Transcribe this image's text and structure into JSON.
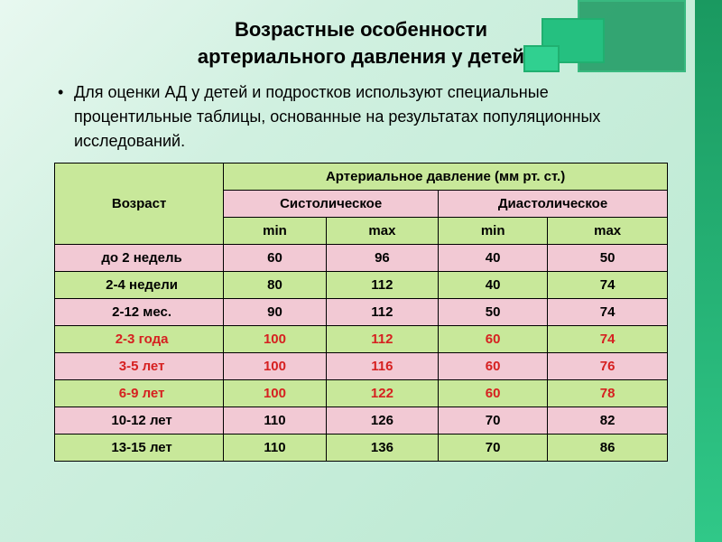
{
  "title_line1": "Возрастные особенности",
  "title_line2": "артериального давления у детей",
  "bullet_text": "Для оценки АД у детей и подростков используют специальные процентильные таблицы, основанные на результатах популяционных исследований.",
  "table": {
    "header": {
      "age": "Возраст",
      "bp": "Артериальное давление (мм рт. ст.)",
      "systolic": "Систолическое",
      "diastolic": "Диастолическое",
      "min": "min",
      "max": "max"
    },
    "rows": [
      {
        "age": "до 2 недель",
        "s_min": "60",
        "s_max": "96",
        "d_min": "40",
        "d_max": "50",
        "row_color": "pink",
        "txt_red": false
      },
      {
        "age": "2-4 недели",
        "s_min": "80",
        "s_max": "112",
        "d_min": "40",
        "d_max": "74",
        "row_color": "green",
        "txt_red": false
      },
      {
        "age": "2-12 мес.",
        "s_min": "90",
        "s_max": "112",
        "d_min": "50",
        "d_max": "74",
        "row_color": "pink",
        "txt_red": false
      },
      {
        "age": "2-3 года",
        "s_min": "100",
        "s_max": "112",
        "d_min": "60",
        "d_max": "74",
        "row_color": "green",
        "txt_red": true
      },
      {
        "age": "3-5 лет",
        "s_min": "100",
        "s_max": "116",
        "d_min": "60",
        "d_max": "76",
        "row_color": "pink",
        "txt_red": true
      },
      {
        "age": "6-9 лет",
        "s_min": "100",
        "s_max": "122",
        "d_min": "60",
        "d_max": "78",
        "row_color": "green",
        "txt_red": true
      },
      {
        "age": "10-12 лет",
        "s_min": "110",
        "s_max": "126",
        "d_min": "70",
        "d_max": "82",
        "row_color": "pink",
        "txt_red": false
      },
      {
        "age": "13-15 лет",
        "s_min": "110",
        "s_max": "136",
        "d_min": "70",
        "d_max": "86",
        "row_color": "green",
        "txt_red": false
      }
    ]
  },
  "colors": {
    "green_cell": "#c8e89a",
    "pink_cell": "#f2c9d4",
    "red_text": "#d62020",
    "bg_gradient_from": "#e8f8f0",
    "bg_gradient_to": "#b8e8d0",
    "deco_green": "#1a9960"
  }
}
